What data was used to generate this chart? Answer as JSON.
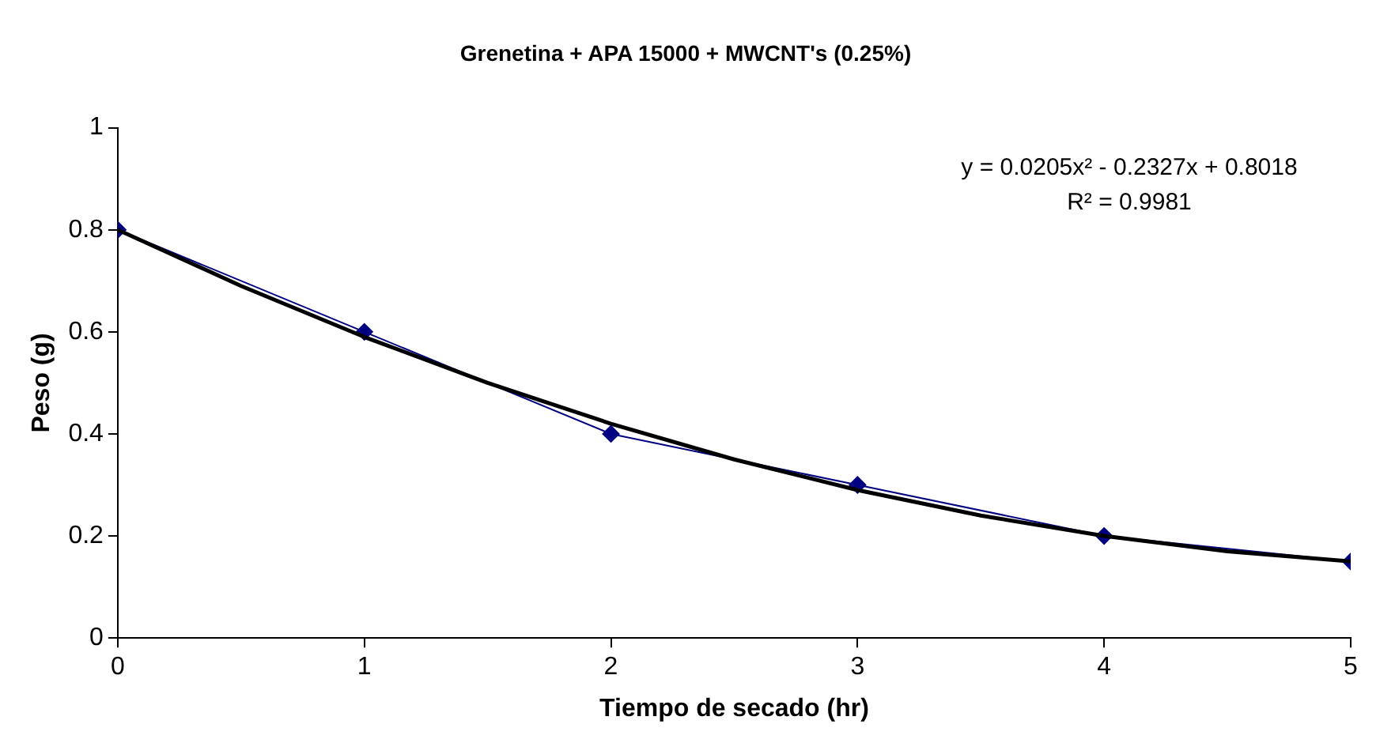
{
  "chart_data": {
    "type": "line",
    "title": "Grenetina + APA 15000 + MWCNT's (0.25%)",
    "xlabel": "Tiempo de secado (hr)",
    "ylabel": "Peso (g)",
    "x": [
      0,
      1,
      2,
      3,
      4,
      5
    ],
    "series": [
      {
        "color": "#000080",
        "values": [
          0.8,
          0.6,
          0.4,
          0.3,
          0.2,
          0.15
        ],
        "marker": "diamond"
      },
      {
        "type": "line",
        "color": "#000000",
        "x": [
          0,
          0.5,
          1,
          1.5,
          2,
          2.5,
          3,
          3.5,
          4,
          4.5,
          5
        ],
        "values": [
          0.8,
          0.69,
          0.59,
          0.5,
          0.42,
          0.35,
          0.29,
          0.24,
          0.2,
          0.17,
          0.15
        ],
        "marker": "none"
      }
    ],
    "xlim": [
      0,
      5
    ],
    "xticks": [
      0,
      1,
      2,
      3,
      4,
      5
    ],
    "ylim": [
      0,
      1
    ],
    "yticks": [
      0,
      0.2,
      0.4,
      0.6,
      0.8,
      1
    ],
    "annotations": [
      "y = 0.0205x² - 0.2327x + 0.8018",
      "R² = 0.9981"
    ]
  }
}
